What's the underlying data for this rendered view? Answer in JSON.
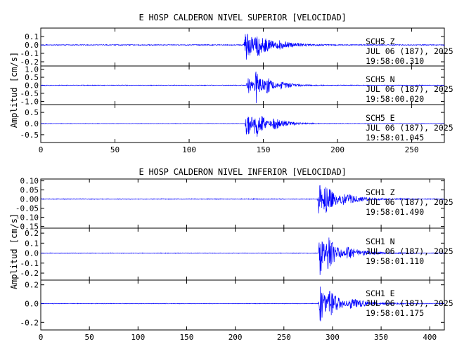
{
  "chart_data": [
    {
      "type": "line",
      "title": "E HOSP CALDERON NIVEL SUPERIOR [VELOCIDAD]",
      "ylabel": "Amplitud [cm/s]",
      "xlim": [
        0,
        272
      ],
      "x_ticks": [
        "0",
        "50",
        "100",
        "150",
        "200",
        "250"
      ],
      "series_color": "#0000ff",
      "traces": [
        {
          "station": "SCH5",
          "component": "Z",
          "date": "JUL 06 (187), 2025",
          "time": "19:58:00.310",
          "ylim": [
            -0.25,
            0.2
          ],
          "y_ticks": [
            "0.1",
            "0.0",
            "-0.1",
            "-0.2"
          ],
          "noise": 0.005,
          "bursts": [
            {
              "t": 138,
              "amp": 0.19,
              "decay": 8
            },
            {
              "t": 146,
              "amp": 0.08,
              "decay": 10
            },
            {
              "t": 160,
              "amp": 0.03,
              "decay": 12
            }
          ]
        },
        {
          "station": "SCH5",
          "component": "N",
          "date": "JUL 06 (187), 2025",
          "time": "19:58:00.020",
          "ylim": [
            -1.2,
            1.2
          ],
          "y_ticks": [
            "1.0",
            "0.5",
            "0.0",
            "-0.5",
            "-1.0"
          ],
          "noise": 0.02,
          "bursts": [
            {
              "t": 140,
              "amp": 0.55,
              "decay": 3
            },
            {
              "t": 145,
              "amp": 1.05,
              "decay": 4
            },
            {
              "t": 152,
              "amp": 0.4,
              "decay": 5
            },
            {
              "t": 162,
              "amp": 0.2,
              "decay": 8
            }
          ]
        },
        {
          "station": "SCH5",
          "component": "E",
          "date": "JUL 06 (187), 2025",
          "time": "19:58:01.045",
          "ylim": [
            -0.85,
            0.85
          ],
          "y_ticks": [
            "0.5",
            "0.0",
            "-0.5"
          ],
          "noise": 0.01,
          "bursts": [
            {
              "t": 139,
              "amp": 0.65,
              "decay": 4
            },
            {
              "t": 145,
              "amp": 0.55,
              "decay": 6
            },
            {
              "t": 157,
              "amp": 0.2,
              "decay": 10
            }
          ]
        }
      ]
    },
    {
      "type": "line",
      "title": "E HOSP CALDERON NIVEL INFERIOR [VELOCIDAD]",
      "ylabel": "Amplitud [cm/s]",
      "xlim": [
        0,
        415
      ],
      "x_ticks": [
        "0",
        "50",
        "100",
        "150",
        "200",
        "250",
        "300",
        "350",
        "400"
      ],
      "series_color": "#0000ff",
      "traces": [
        {
          "station": "SCH1",
          "component": "Z",
          "date": "JUL 06 (187), 2025",
          "time": "19:58:01.490",
          "ylim": [
            -0.16,
            0.11
          ],
          "y_ticks": [
            "0.10",
            "0.05",
            "0.00",
            "-0.05",
            "-0.10",
            "-0.15"
          ],
          "noise": 0.002,
          "bursts": [
            {
              "t": 286,
              "amp": 0.1,
              "decay": 6
            },
            {
              "t": 292,
              "amp": 0.06,
              "decay": 14
            },
            {
              "t": 310,
              "amp": 0.02,
              "decay": 20
            }
          ]
        },
        {
          "station": "SCH1",
          "component": "N",
          "date": "JUL 06 (187), 2025",
          "time": "19:58:01.110",
          "ylim": [
            -0.27,
            0.25
          ],
          "y_ticks": [
            "0.2",
            "0.1",
            "0.0",
            "-0.1",
            "-0.2"
          ],
          "noise": 0.003,
          "bursts": [
            {
              "t": 287,
              "amp": 0.23,
              "decay": 6
            },
            {
              "t": 295,
              "amp": 0.12,
              "decay": 12
            },
            {
              "t": 315,
              "amp": 0.04,
              "decay": 20
            }
          ]
        },
        {
          "station": "SCH1",
          "component": "E",
          "date": "JUL 06 (187), 2025",
          "time": "19:58:01.175",
          "ylim": [
            -0.28,
            0.25
          ],
          "y_ticks": [
            "0.2",
            "0.0",
            "-0.2"
          ],
          "noise": 0.003,
          "bursts": [
            {
              "t": 287,
              "amp": 0.22,
              "decay": 6
            },
            {
              "t": 296,
              "amp": 0.12,
              "decay": 12
            },
            {
              "t": 318,
              "amp": 0.04,
              "decay": 22
            }
          ]
        }
      ]
    }
  ]
}
